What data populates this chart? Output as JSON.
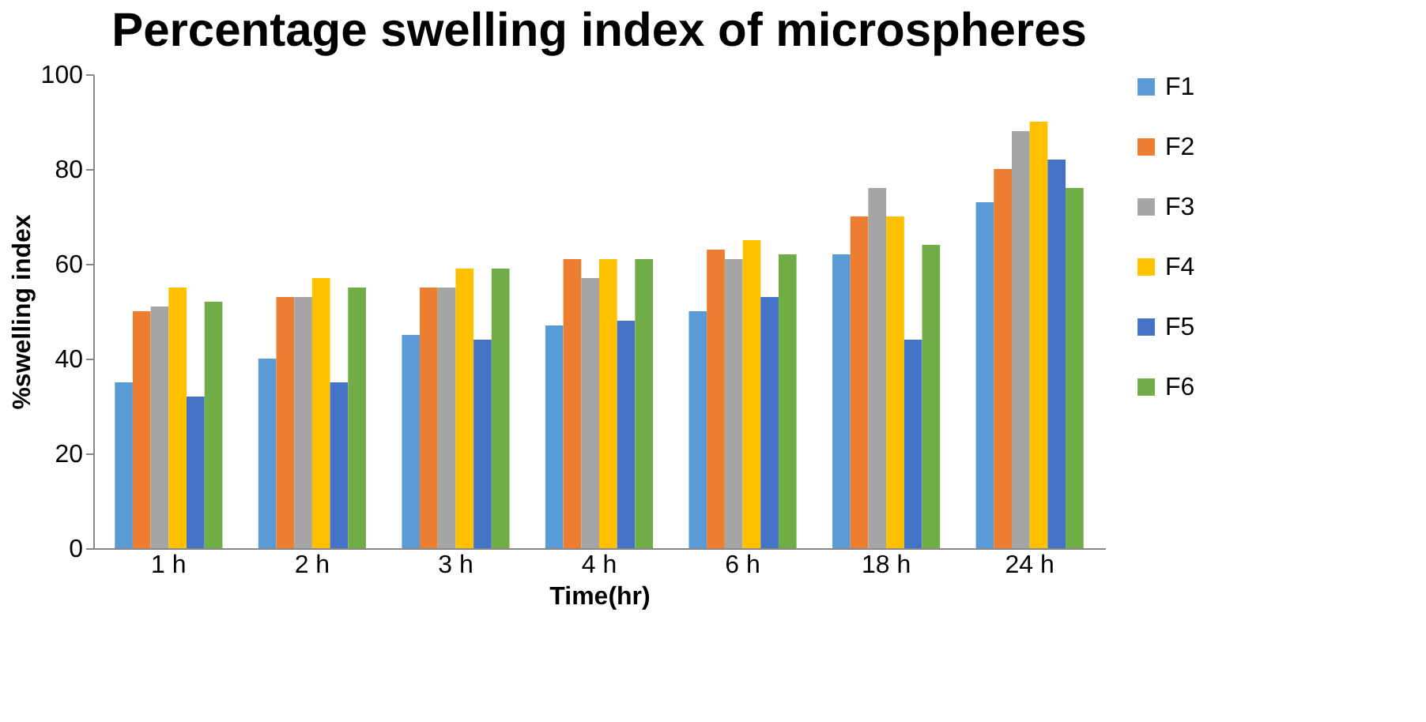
{
  "chart_data": {
    "type": "bar",
    "title": "Percentage swelling index of microspheres",
    "xlabel": "Time(hr)",
    "ylabel": "%swelling index",
    "categories": [
      "1 h",
      "2 h",
      "3 h",
      "4 h",
      "6 h",
      "18 h",
      "24 h"
    ],
    "series": [
      {
        "name": "F1",
        "color": "#5b9bd5",
        "values": [
          35,
          40,
          45,
          47,
          50,
          62,
          73
        ]
      },
      {
        "name": "F2",
        "color": "#ed7d31",
        "values": [
          50,
          53,
          55,
          61,
          63,
          70,
          80
        ]
      },
      {
        "name": "F3",
        "color": "#a5a5a5",
        "values": [
          51,
          53,
          55,
          57,
          61,
          76,
          88
        ]
      },
      {
        "name": "F4",
        "color": "#ffc000",
        "values": [
          55,
          57,
          59,
          61,
          65,
          70,
          90
        ]
      },
      {
        "name": "F5",
        "color": "#4472c4",
        "values": [
          32,
          35,
          44,
          48,
          53,
          44,
          82
        ]
      },
      {
        "name": "F6",
        "color": "#70ad47",
        "values": [
          52,
          55,
          59,
          61,
          62,
          64,
          76
        ]
      }
    ],
    "ylim": [
      0,
      100
    ],
    "yticks": [
      0,
      20,
      40,
      60,
      80,
      100
    ],
    "grid": false,
    "legend": "right"
  }
}
